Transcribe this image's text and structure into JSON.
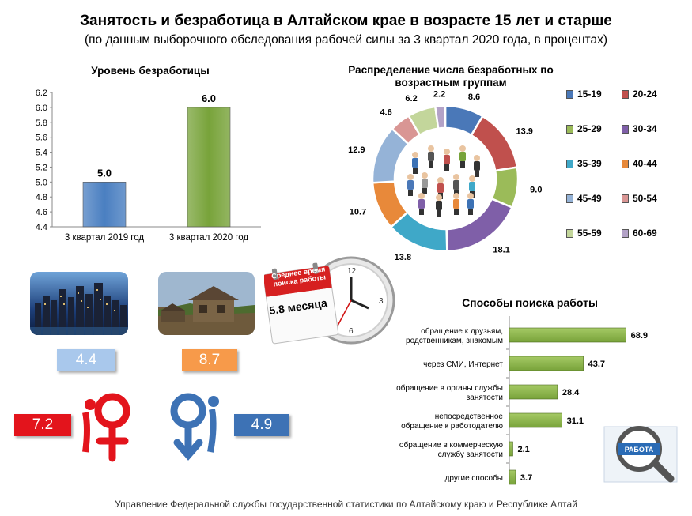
{
  "header": {
    "title": "Занятость и безработица в Алтайском крае в возрасте 15 лет и старше",
    "subtitle": "(по данным выборочного обследования рабочей силы за 3 квартал 2020 года, в процентах)"
  },
  "chart_data": [
    {
      "type": "bar",
      "title": "Уровень безработицы",
      "categories": [
        "3 квартал 2019 год",
        "3 квартал 2020 год"
      ],
      "values": [
        5.0,
        6.0
      ],
      "ylim": [
        4.4,
        6.2
      ],
      "yticks": [
        "6.2",
        "6.0",
        "5.8",
        "5.6",
        "5.4",
        "5.2",
        "5.0",
        "4.8",
        "4.6",
        "4.4"
      ],
      "data_labels": [
        "5.0",
        "6.0"
      ],
      "colors": [
        "#4a7fc1",
        "#78a33a"
      ]
    },
    {
      "type": "pie",
      "title": "Распределение числа безработных по возрастным группам",
      "categories": [
        "15-19",
        "20-24",
        "25-29",
        "30-34",
        "35-39",
        "40-44",
        "45-49",
        "50-54",
        "55-59",
        "60-69"
      ],
      "values": [
        8.6,
        13.9,
        9.0,
        18.1,
        13.8,
        10.7,
        12.9,
        4.6,
        6.2,
        2.2
      ],
      "data_labels": [
        "8.6",
        "13.9",
        "9.0",
        "18.1",
        "13.8",
        "10.7",
        "12.9",
        "4.6",
        "6.2",
        "2.2"
      ],
      "colors": [
        "#4a78b8",
        "#c0504d",
        "#9bbb59",
        "#7f5fa8",
        "#3fa8c8",
        "#e8893a",
        "#95b3d7",
        "#d99694",
        "#c3d69b",
        "#b3a2c7"
      ],
      "legend_position": "right"
    },
    {
      "type": "bar",
      "orientation": "horizontal",
      "title": "Способы поиска работы",
      "categories": [
        "обращение к друзьям, родственникам, знакомым",
        "через СМИ, Интернет",
        "обращение в органы службы занятости",
        "непосредственное обращение к работодателю",
        "обращение в коммерческую службу занятости",
        "другие способы"
      ],
      "category_lines": [
        [
          "обращение к друзьям,",
          "родственникам, знакомым"
        ],
        [
          "через СМИ, Интернет"
        ],
        [
          "обращение в органы службы",
          "занятости"
        ],
        [
          "непосредственное",
          "обращение к работодателю"
        ],
        [
          "обращение в коммерческую",
          "службу занятости"
        ],
        [
          "другие способы"
        ]
      ],
      "values": [
        68.9,
        43.7,
        28.4,
        31.1,
        2.1,
        3.7
      ],
      "data_labels": [
        "68.9",
        "43.7",
        "28.4",
        "31.1",
        "2.1",
        "3.7"
      ],
      "color": "#78a33a"
    }
  ],
  "search_time": {
    "badge": "Среднее время поиска работы",
    "value": "5.8 месяца"
  },
  "settlement": {
    "urban_value": "4.4",
    "rural_value": "8.7",
    "urban_color": "#a9c8ec",
    "rural_color": "#f79a4a"
  },
  "gender": {
    "female_value": "7.2",
    "male_value": "4.9",
    "female_color": "#e3141c",
    "male_color": "#3d72b5"
  },
  "footer": {
    "text": "Управление Федеральной службы государственной статистики по Алтайскому краю и Республике Алтай"
  },
  "decor": {
    "search_sign": "РАБОТА"
  }
}
